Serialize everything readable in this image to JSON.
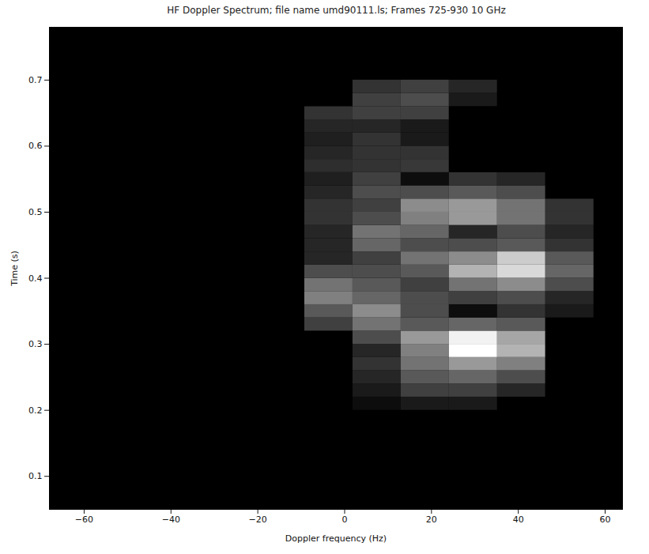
{
  "chart_data": {
    "type": "heatmap",
    "title": "HF Doppler Spectrum; file name umd90111.ls; Frames 725-930  10 GHz",
    "x_label": "Doppler frequency (Hz)",
    "y_label": "Time (s)",
    "xlim": [
      -68,
      64
    ],
    "xticks": [
      -60,
      -40,
      -20,
      0,
      20,
      40,
      60
    ],
    "ylim": [
      0.05,
      0.78
    ],
    "yticks": [
      0.1,
      0.2,
      0.3,
      0.4,
      0.5,
      0.6,
      0.7
    ],
    "x_edges": [
      -9.2,
      1.9,
      13,
      24.1,
      35.2,
      46.3,
      57.4
    ],
    "y_edges": [
      0.2,
      0.22,
      0.24,
      0.26,
      0.28,
      0.3,
      0.32,
      0.34,
      0.36,
      0.38,
      0.4,
      0.42,
      0.44,
      0.46,
      0.48,
      0.5,
      0.52,
      0.54,
      0.56,
      0.58,
      0.6,
      0.62,
      0.64,
      0.66,
      0.68,
      0.7
    ],
    "cells": [
      [
        0,
        0.05,
        0.1,
        0.1,
        0,
        0
      ],
      [
        0,
        0.1,
        0.25,
        0.25,
        0.15,
        0
      ],
      [
        0,
        0.15,
        0.35,
        0.4,
        0.3,
        0
      ],
      [
        0,
        0.2,
        0.45,
        0.6,
        0.5,
        0
      ],
      [
        0,
        0.15,
        0.5,
        1.0,
        0.7,
        0
      ],
      [
        0,
        0.3,
        0.6,
        0.95,
        0.65,
        0
      ],
      [
        0.25,
        0.45,
        0.35,
        0.4,
        0.35,
        0
      ],
      [
        0.35,
        0.55,
        0.3,
        0.05,
        0.2,
        0.1
      ],
      [
        0.5,
        0.4,
        0.3,
        0.25,
        0.3,
        0.15
      ],
      [
        0.45,
        0.35,
        0.25,
        0.45,
        0.55,
        0.3
      ],
      [
        0.3,
        0.3,
        0.35,
        0.7,
        0.85,
        0.4
      ],
      [
        0.15,
        0.25,
        0.45,
        0.55,
        0.8,
        0.35
      ],
      [
        0.15,
        0.4,
        0.3,
        0.3,
        0.35,
        0.2
      ],
      [
        0.15,
        0.45,
        0.4,
        0.15,
        0.3,
        0.15
      ],
      [
        0.2,
        0.3,
        0.5,
        0.6,
        0.45,
        0.2
      ],
      [
        0.2,
        0.25,
        0.55,
        0.6,
        0.45,
        0.2
      ],
      [
        0.15,
        0.3,
        0.3,
        0.35,
        0.3,
        0
      ],
      [
        0.12,
        0.25,
        0.05,
        0.2,
        0.15,
        0
      ],
      [
        0.18,
        0.2,
        0.22,
        0,
        0,
        0
      ],
      [
        0.15,
        0.2,
        0.2,
        0,
        0,
        0
      ],
      [
        0.12,
        0.2,
        0.1,
        0,
        0,
        0
      ],
      [
        0.15,
        0.15,
        0.1,
        0,
        0,
        0
      ],
      [
        0.2,
        0.25,
        0.25,
        0,
        0,
        0
      ],
      [
        0,
        0.25,
        0.3,
        0.1,
        0,
        0
      ],
      [
        0,
        0.2,
        0.25,
        0.15,
        0,
        0
      ]
    ],
    "intensity_range": [
      0,
      1
    ]
  }
}
